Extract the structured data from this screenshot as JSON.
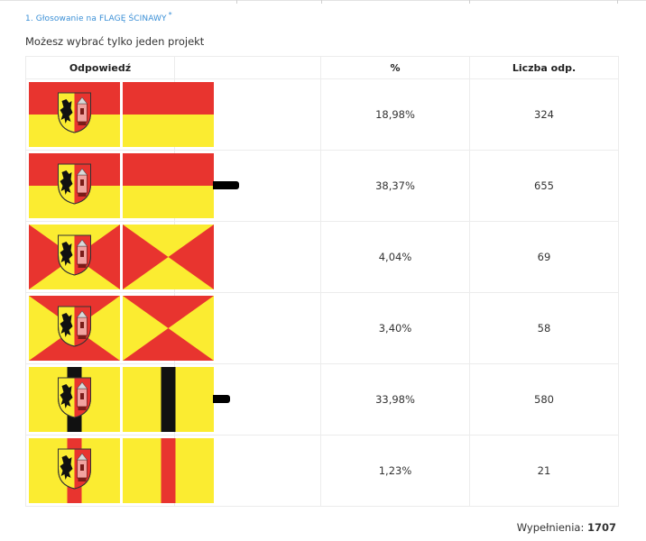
{
  "poll": {
    "question_title": "1. Głosowanie na FLAGĘ ŚCINAWY",
    "required_mark": "*",
    "instruction": "Możesz wybrać tylko jeden projekt"
  },
  "table": {
    "headers": {
      "answer": "Odpowiedź",
      "bar": "",
      "percent": "%",
      "count": "Liczba odp."
    },
    "rows": [
      {
        "design": "horizontal-stripes",
        "percent_text": "18,98%",
        "percent": 18.98,
        "count": "324"
      },
      {
        "design": "horizontal-stripes",
        "percent_text": "38,37%",
        "percent": 38.37,
        "count": "655"
      },
      {
        "design": "saltire-triangles-red-sides",
        "percent_text": "4,04%",
        "percent": 4.04,
        "count": "69"
      },
      {
        "design": "saltire-triangles-red-top-bottom",
        "percent_text": "3,40%",
        "percent": 3.4,
        "count": "58"
      },
      {
        "design": "yellow-black-vertical-stripe",
        "percent_text": "33,98%",
        "percent": 33.98,
        "count": "580"
      },
      {
        "design": "yellow-red-vertical-stripe",
        "percent_text": "1,23%",
        "percent": 1.23,
        "count": "21"
      }
    ]
  },
  "footer": {
    "label": "Wypełnienia:",
    "total": "1707"
  },
  "colors": {
    "red": "#e8342f",
    "yellow": "#fbec31",
    "black": "#111111",
    "accent": "#3a8fd6"
  }
}
